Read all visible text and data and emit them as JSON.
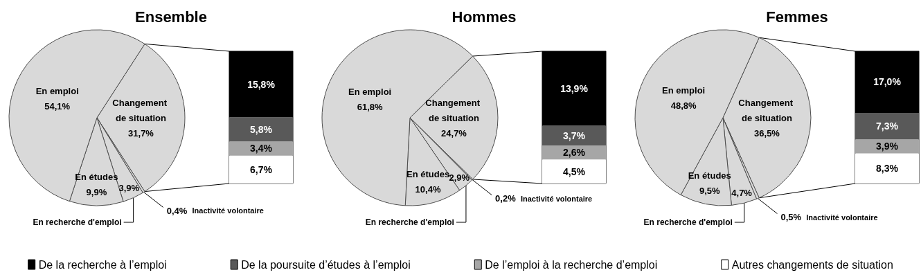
{
  "chart_data": [
    {
      "type": "pie",
      "title": "Ensemble",
      "categories": [
        "Changement de situation",
        "Inactivité volontaire",
        "En recherche d'emploi",
        "En études",
        "En emploi"
      ],
      "values": [
        31.7,
        0.4,
        3.9,
        9.9,
        54.1
      ],
      "value_labels": [
        "31,7%",
        "0,4%",
        "3,9%",
        "9,9%",
        "54,1%"
      ],
      "colors": [
        "#d9d9d9",
        "#d9d9d9",
        "#d9d9d9",
        "#d9d9d9",
        "#d9d9d9"
      ]
    },
    {
      "type": "bar",
      "stacked": true,
      "categories": [
        null
      ],
      "legend": "bottom",
      "series": [
        {
          "name": "Autres changements de situation",
          "color": "#ffffff",
          "values": [
            6.7
          ],
          "value_labels": [
            "6,7%"
          ]
        },
        {
          "name": "De l’emploi à la recherche d’emploi",
          "color": "#a6a6a6",
          "values": [
            3.4
          ],
          "value_labels": [
            "3,4%"
          ]
        },
        {
          "name": "De la poursuite d’études à l’emploi",
          "color": "#595959",
          "values": [
            5.8
          ],
          "value_labels": [
            "5,8%"
          ]
        },
        {
          "name": "De la recherche à l’emploi",
          "color": "#000000",
          "values": [
            15.8
          ],
          "value_labels": [
            "15,8%"
          ]
        }
      ]
    },
    {
      "type": "pie",
      "title": "Hommes",
      "categories": [
        "Changement de situation",
        "Inactivité volontaire",
        "En recherche d'emploi",
        "En études",
        "En emploi"
      ],
      "values": [
        24.7,
        0.2,
        2.9,
        10.4,
        61.8
      ],
      "value_labels": [
        "24,7%",
        "0,2%",
        "2,9%",
        "10,4%",
        "61,8%"
      ],
      "colors": [
        "#d9d9d9",
        "#d9d9d9",
        "#d9d9d9",
        "#d9d9d9",
        "#d9d9d9"
      ]
    },
    {
      "type": "bar",
      "stacked": true,
      "categories": [
        null
      ],
      "series": [
        {
          "color": "#ffffff",
          "values": [
            4.5
          ],
          "value_labels": [
            "4,5%"
          ]
        },
        {
          "color": "#a6a6a6",
          "values": [
            2.6
          ],
          "value_labels": [
            "2,6%"
          ]
        },
        {
          "color": "#595959",
          "values": [
            3.7
          ],
          "value_labels": [
            "3,7%"
          ]
        },
        {
          "color": "#000000",
          "values": [
            13.9
          ],
          "value_labels": [
            "13,9%"
          ]
        }
      ]
    },
    {
      "type": "pie",
      "title": "Femmes",
      "categories": [
        "Changement de situation",
        "Inactivité volontaire",
        "En recherche d'emploi",
        "En études",
        "En emploi"
      ],
      "values": [
        36.5,
        0.5,
        4.7,
        9.5,
        48.8
      ],
      "value_labels": [
        "36,5%",
        "0,5%",
        "4,7%",
        "9,5%",
        "48,8%"
      ],
      "colors": [
        "#d9d9d9",
        "#d9d9d9",
        "#d9d9d9",
        "#d9d9d9",
        "#d9d9d9"
      ]
    },
    {
      "type": "bar",
      "stacked": true,
      "categories": [
        null
      ],
      "series": [
        {
          "color": "#ffffff",
          "values": [
            8.3
          ],
          "value_labels": [
            "8,3%"
          ]
        },
        {
          "color": "#a6a6a6",
          "values": [
            3.9
          ],
          "value_labels": [
            "3,9%"
          ]
        },
        {
          "color": "#595959",
          "values": [
            7.3
          ],
          "value_labels": [
            "7,3%"
          ]
        },
        {
          "color": "#000000",
          "values": [
            17.0
          ],
          "value_labels": [
            "17,0%"
          ]
        }
      ]
    }
  ]
}
